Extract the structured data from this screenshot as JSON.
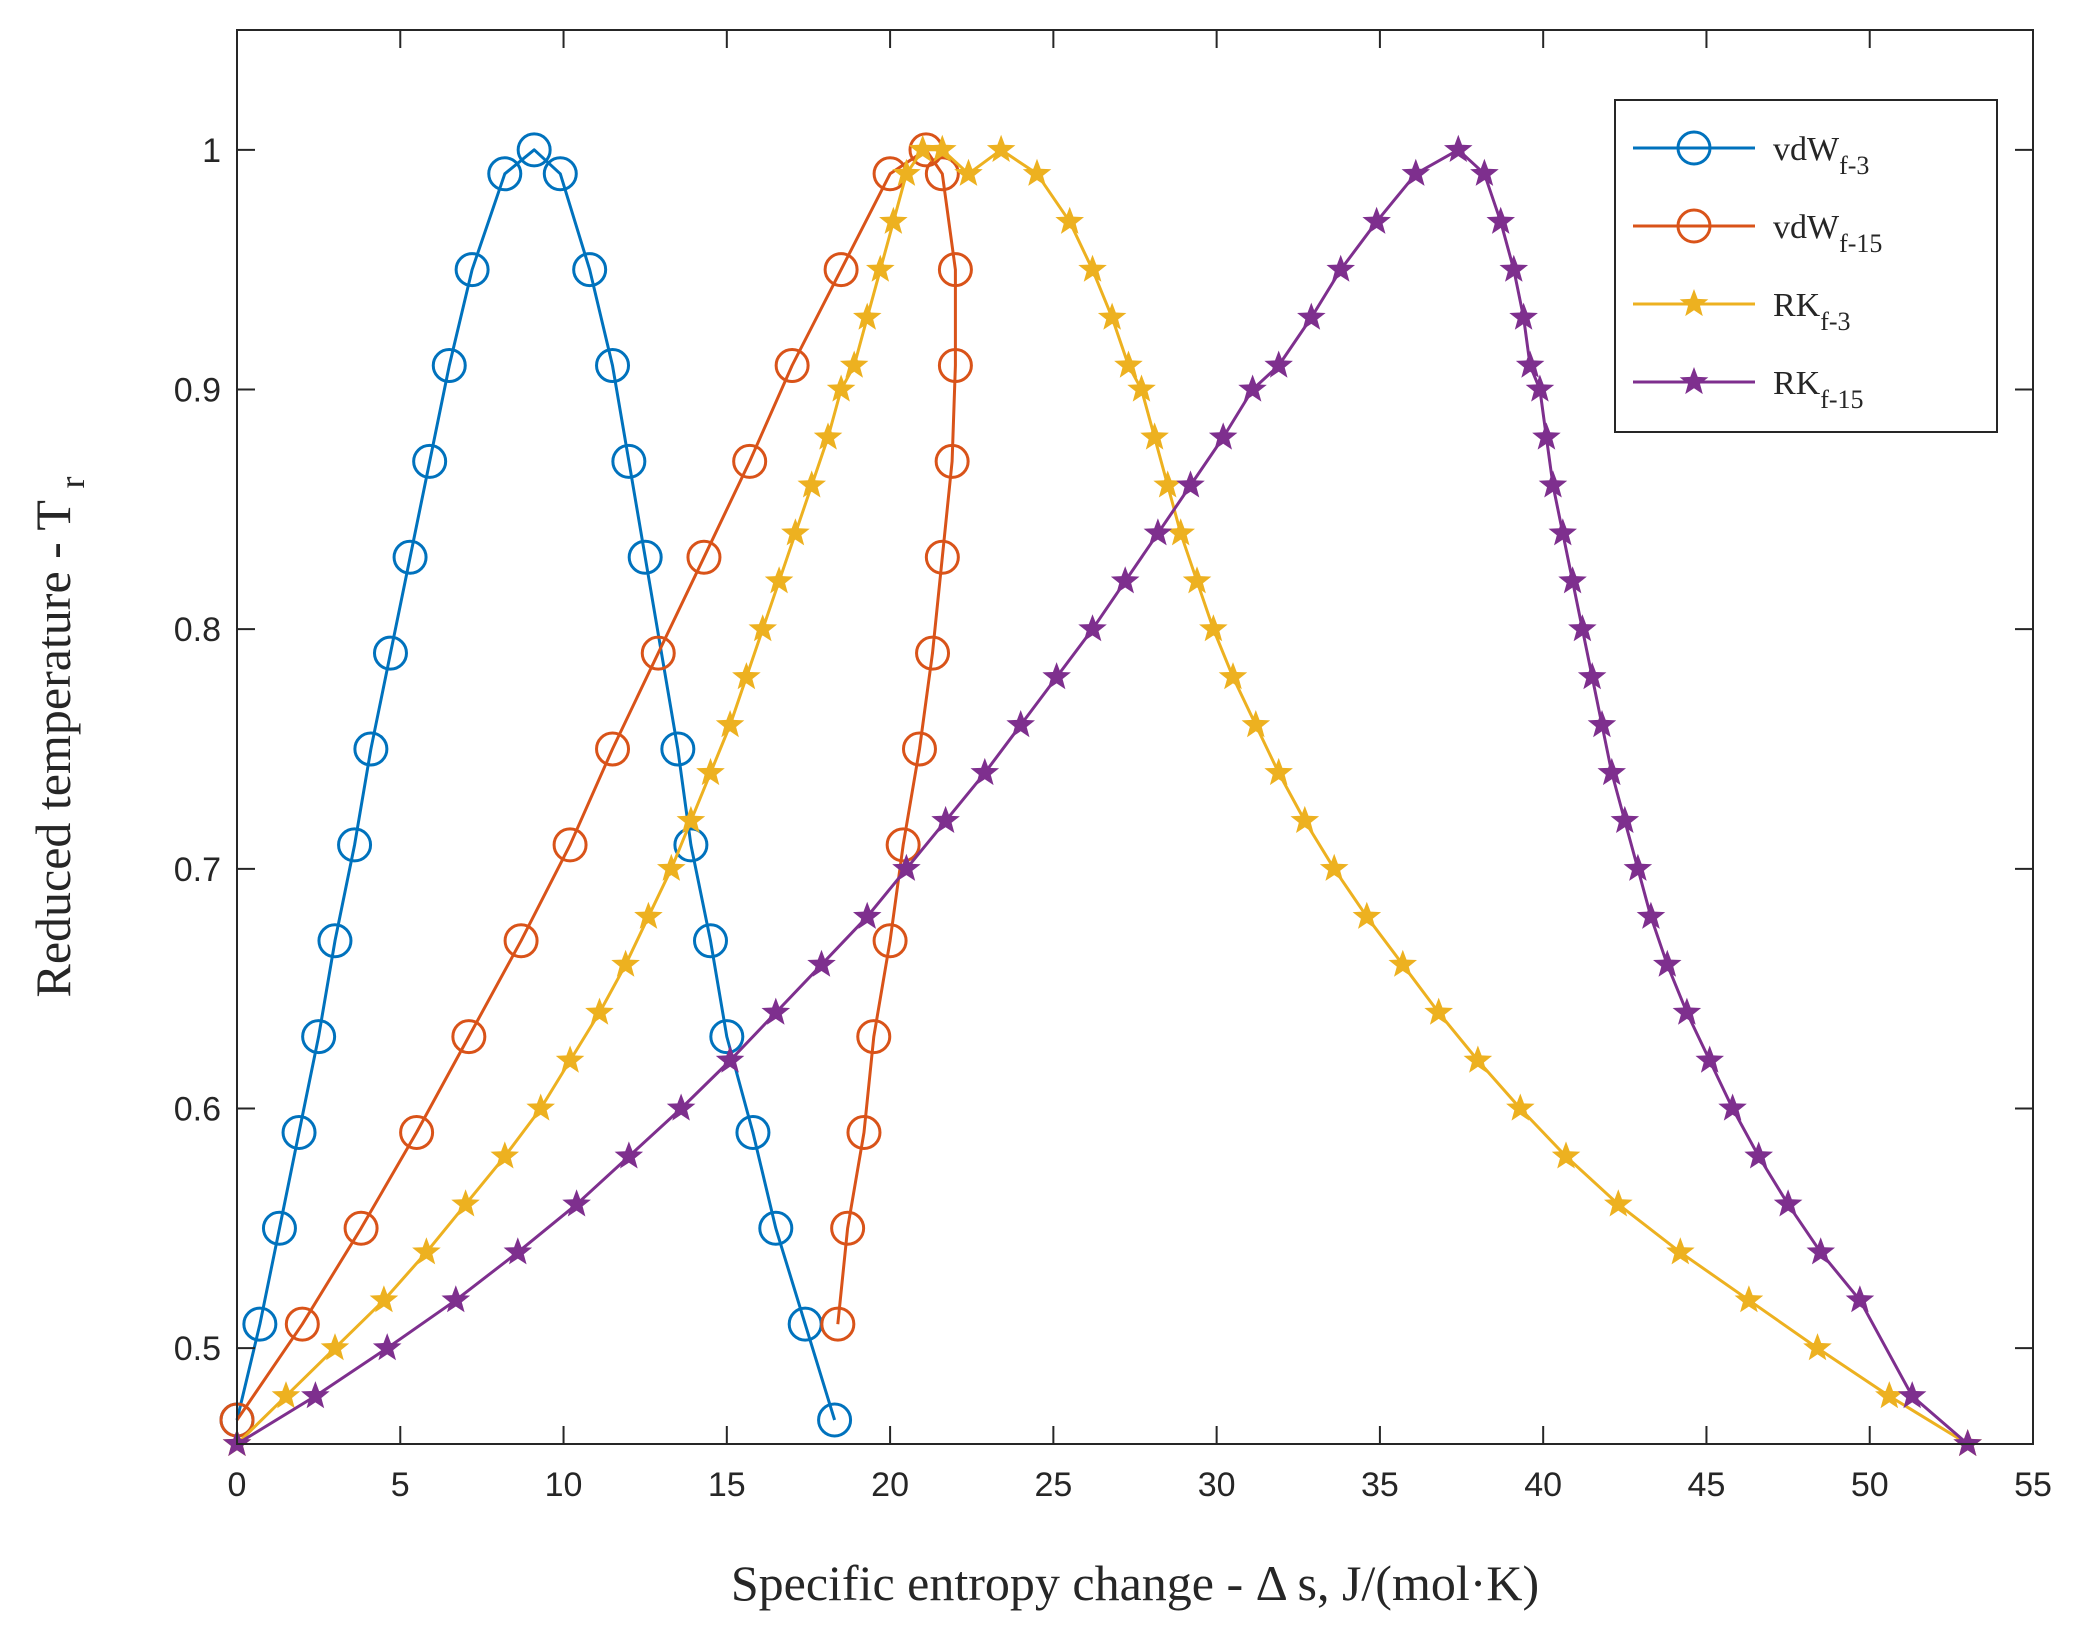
{
  "chart_data": {
    "type": "line",
    "title": "",
    "xlabel": "Specific entropy change - Δ s, J/(mol·K)",
    "ylabel": "Reduced temperature - T",
    "ylabel_subscript": "r",
    "xlim": [
      0,
      55
    ],
    "ylim": [
      0.46,
      1.05
    ],
    "xticks": [
      0,
      5,
      10,
      15,
      20,
      25,
      30,
      35,
      40,
      45,
      50,
      55
    ],
    "xtick_labels": [
      "0",
      "5",
      "10",
      "15",
      "20",
      "25",
      "30",
      "35",
      "40",
      "45",
      "50",
      "55"
    ],
    "yticks": [
      0.5,
      0.6,
      0.7,
      0.8,
      0.9,
      1.0
    ],
    "ytick_labels": [
      "0.5",
      "0.6",
      "0.7",
      "0.8",
      "0.9",
      "1"
    ],
    "grid": false,
    "legend_position": "top-right",
    "series": [
      {
        "name": "vdW",
        "subscript": "f-3",
        "color": "#0072BD",
        "marker": "circle",
        "x": [
          0,
          0.7,
          1.3,
          1.9,
          2.5,
          3.0,
          3.6,
          4.1,
          4.7,
          5.3,
          5.9,
          6.5,
          7.2,
          8.2,
          9.1,
          9.9,
          10.8,
          11.5,
          12.0,
          12.5,
          13.5,
          13.9,
          14.5,
          15.0,
          15.8,
          16.5,
          17.4,
          18.3
        ],
        "y": [
          0.47,
          0.51,
          0.55,
          0.59,
          0.63,
          0.67,
          0.71,
          0.75,
          0.79,
          0.83,
          0.87,
          0.91,
          0.95,
          0.99,
          1.0,
          0.99,
          0.95,
          0.91,
          0.87,
          0.83,
          0.75,
          0.71,
          0.67,
          0.63,
          0.59,
          0.55,
          0.51,
          0.47
        ]
      },
      {
        "name": "vdW",
        "subscript": "f-15",
        "color": "#D95319",
        "marker": "circle",
        "x": [
          0,
          2.0,
          3.8,
          5.5,
          7.1,
          8.7,
          10.2,
          11.5,
          12.9,
          14.3,
          15.7,
          17.0,
          18.5,
          20.0,
          21.1,
          21.6,
          22.0,
          22.0,
          21.9,
          21.6,
          21.3,
          20.9,
          20.4,
          20.0,
          19.5,
          19.2,
          18.7,
          18.4
        ],
        "y": [
          0.47,
          0.51,
          0.55,
          0.59,
          0.63,
          0.67,
          0.71,
          0.75,
          0.79,
          0.83,
          0.87,
          0.91,
          0.95,
          0.99,
          1.0,
          0.99,
          0.95,
          0.91,
          0.87,
          0.83,
          0.79,
          0.75,
          0.71,
          0.67,
          0.63,
          0.59,
          0.55,
          0.51
        ]
      },
      {
        "name": "RK",
        "subscript": "f-3",
        "color": "#EDB120",
        "marker": "star",
        "x": [
          0,
          1.5,
          3.0,
          4.5,
          5.8,
          7.0,
          8.2,
          9.3,
          10.2,
          11.1,
          11.9,
          12.6,
          13.3,
          13.9,
          14.5,
          15.1,
          15.6,
          16.1,
          16.6,
          17.1,
          17.6,
          18.1,
          18.5,
          18.9,
          19.3,
          19.7,
          20.1,
          20.5,
          21.0,
          21.6,
          22.4,
          23.4,
          24.5,
          25.5,
          26.2,
          26.8,
          27.3,
          27.7,
          28.1,
          28.5,
          28.9,
          29.4,
          29.9,
          30.5,
          31.2,
          31.9,
          32.7,
          33.6,
          34.6,
          35.7,
          36.8,
          38.0,
          39.3,
          40.7,
          42.3,
          44.2,
          46.3,
          48.4,
          50.6,
          53.0
        ],
        "y": [
          0.46,
          0.48,
          0.5,
          0.52,
          0.54,
          0.56,
          0.58,
          0.6,
          0.62,
          0.64,
          0.66,
          0.68,
          0.7,
          0.72,
          0.74,
          0.76,
          0.78,
          0.8,
          0.82,
          0.84,
          0.86,
          0.88,
          0.9,
          0.91,
          0.93,
          0.95,
          0.97,
          0.99,
          1.0,
          1.0,
          0.99,
          1.0,
          0.99,
          0.97,
          0.95,
          0.93,
          0.91,
          0.9,
          0.88,
          0.86,
          0.84,
          0.82,
          0.8,
          0.78,
          0.76,
          0.74,
          0.72,
          0.7,
          0.68,
          0.66,
          0.64,
          0.62,
          0.6,
          0.58,
          0.56,
          0.54,
          0.52,
          0.5,
          0.48,
          0.46
        ]
      },
      {
        "name": "RK",
        "subscript": "f-15",
        "color": "#7E2F8E",
        "marker": "star",
        "x": [
          0,
          2.4,
          4.6,
          6.7,
          8.6,
          10.4,
          12.0,
          13.6,
          15.1,
          16.5,
          17.9,
          19.3,
          20.5,
          21.7,
          22.9,
          24.0,
          25.1,
          26.2,
          27.2,
          28.2,
          29.2,
          30.2,
          31.1,
          31.9,
          32.9,
          33.8,
          34.9,
          36.1,
          37.4,
          38.2,
          38.7,
          39.1,
          39.4,
          39.6,
          39.9,
          40.1,
          40.3,
          40.6,
          40.9,
          41.2,
          41.5,
          41.8,
          42.1,
          42.5,
          42.9,
          43.3,
          43.8,
          44.4,
          45.1,
          45.8,
          46.6,
          47.5,
          48.5,
          49.7,
          51.3,
          53.0
        ],
        "y": [
          0.46,
          0.48,
          0.5,
          0.52,
          0.54,
          0.56,
          0.58,
          0.6,
          0.62,
          0.64,
          0.66,
          0.68,
          0.7,
          0.72,
          0.74,
          0.76,
          0.78,
          0.8,
          0.82,
          0.84,
          0.86,
          0.88,
          0.9,
          0.91,
          0.93,
          0.95,
          0.97,
          0.99,
          1.0,
          0.99,
          0.97,
          0.95,
          0.93,
          0.91,
          0.9,
          0.88,
          0.86,
          0.84,
          0.82,
          0.8,
          0.78,
          0.76,
          0.74,
          0.72,
          0.7,
          0.68,
          0.66,
          0.64,
          0.62,
          0.6,
          0.58,
          0.56,
          0.54,
          0.52,
          0.48,
          0.46
        ]
      }
    ]
  }
}
